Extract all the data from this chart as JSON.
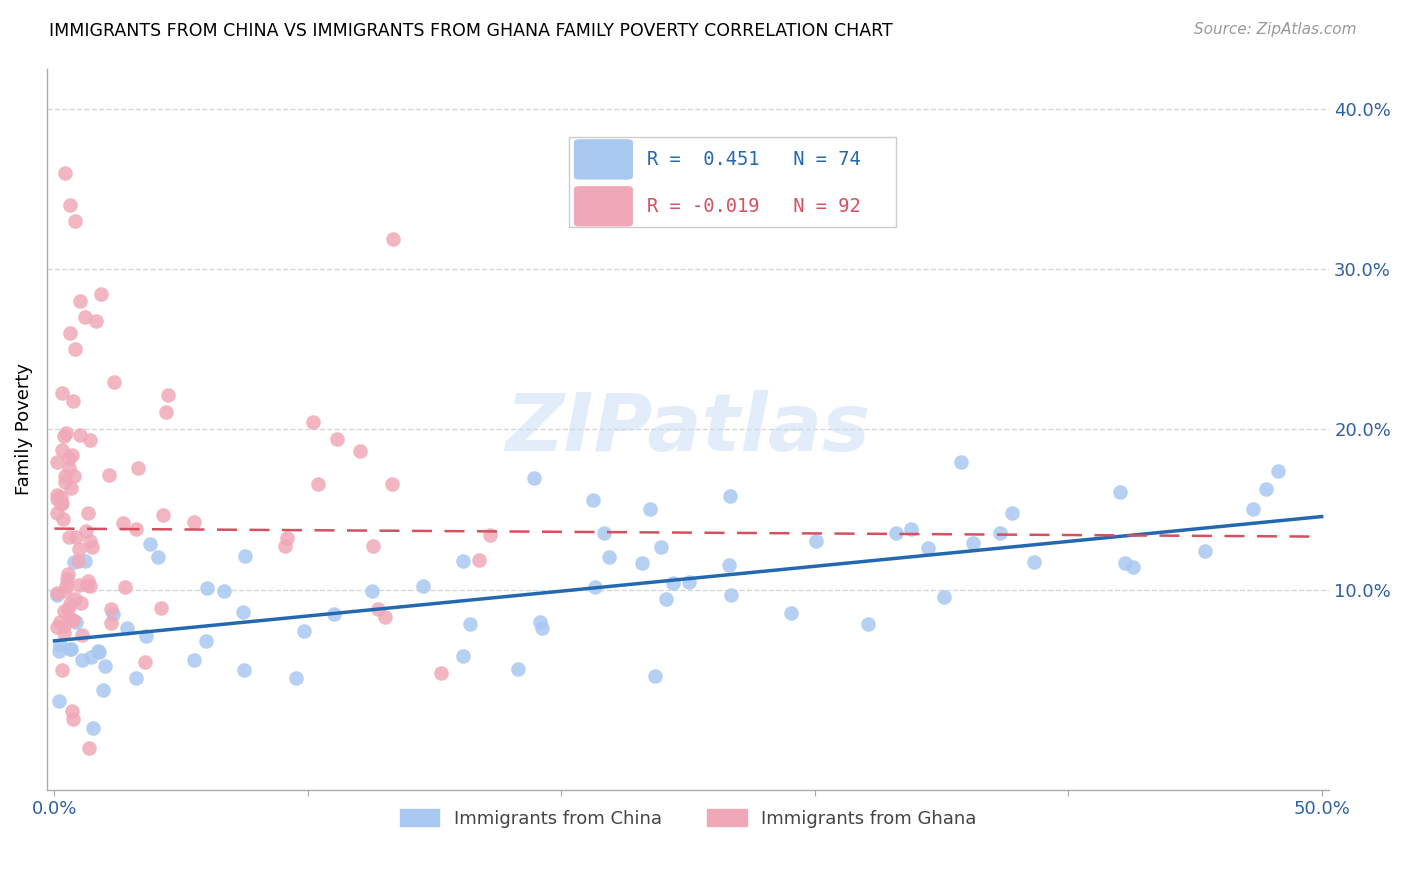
{
  "title": "IMMIGRANTS FROM CHINA VS IMMIGRANTS FROM GHANA FAMILY POVERTY CORRELATION CHART",
  "source": "Source: ZipAtlas.com",
  "ylabel": "Family Poverty",
  "xlim": [
    0.0,
    0.5
  ],
  "ylim": [
    -0.025,
    0.425
  ],
  "china_R": 0.451,
  "china_N": 74,
  "ghana_R": -0.019,
  "ghana_N": 92,
  "china_color": "#a8c8f0",
  "ghana_color": "#f0a8b8",
  "china_line_color": "#2469b0",
  "ghana_line_color": "#d45060",
  "watermark_color": "#ccdff5",
  "grid_color": "#cccccc",
  "tick_color": "#3060a0",
  "spine_color": "#aaaaaa",
  "yticks": [
    0.1,
    0.2,
    0.3,
    0.4
  ],
  "china_intercept": 0.068,
  "china_slope": 0.155,
  "ghana_intercept": 0.138,
  "ghana_slope": -0.01
}
